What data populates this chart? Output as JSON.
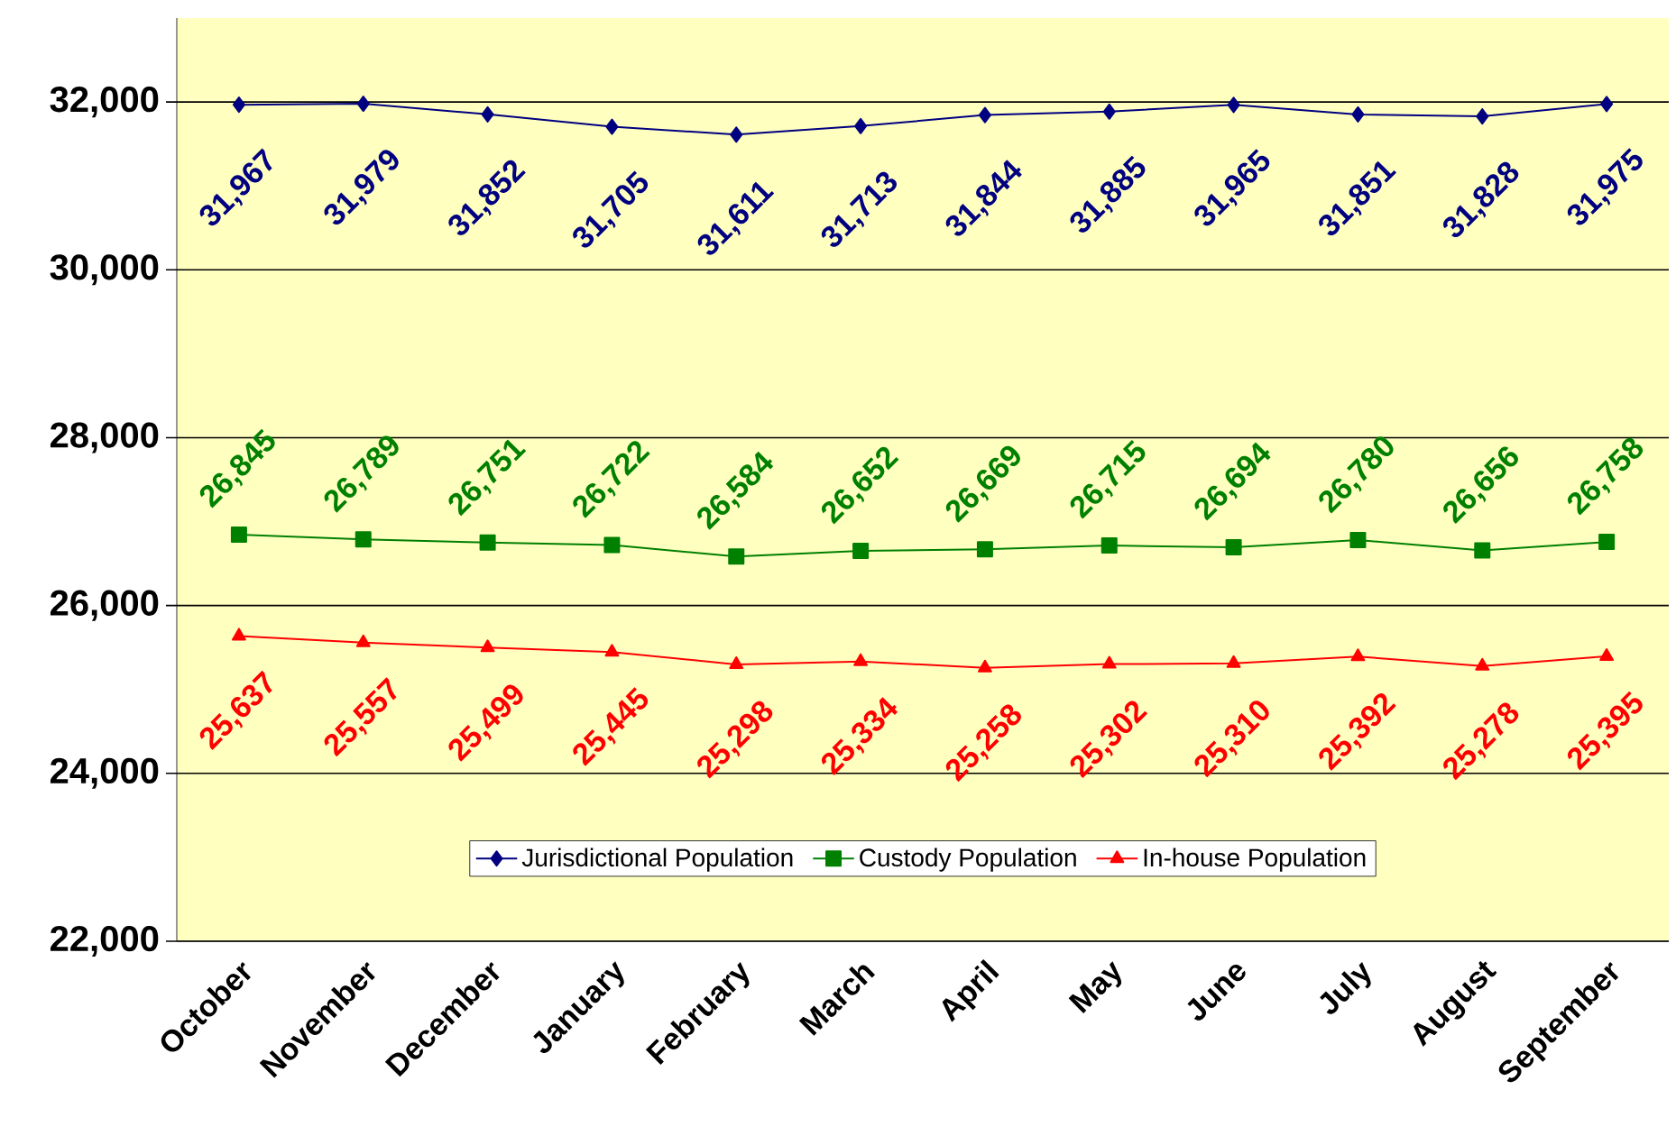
{
  "chart_data": {
    "type": "line",
    "categories": [
      "October",
      "November",
      "December",
      "January",
      "February",
      "March",
      "April",
      "May",
      "June",
      "July",
      "August",
      "September"
    ],
    "series": [
      {
        "name": "Jurisdictional Population",
        "color": "#000080",
        "marker": "diamond",
        "values": [
          31967,
          31979,
          31852,
          31705,
          31611,
          31713,
          31844,
          31885,
          31965,
          31851,
          31828,
          31975
        ],
        "value_labels": [
          "31,967",
          "31,979",
          "31,852",
          "31,705",
          "31,611",
          "31,713",
          "31,844",
          "31,885",
          "31,965",
          "31,851",
          "31,828",
          "31,975"
        ]
      },
      {
        "name": "Custody Population",
        "color": "#008000",
        "marker": "square",
        "values": [
          26845,
          26789,
          26751,
          26722,
          26584,
          26652,
          26669,
          26715,
          26694,
          26780,
          26656,
          26758
        ],
        "value_labels": [
          "26,845",
          "26,789",
          "26,751",
          "26,722",
          "26,584",
          "26,652",
          "26,669",
          "26,715",
          "26,694",
          "26,780",
          "26,656",
          "26,758"
        ]
      },
      {
        "name": "In-house Population",
        "color": "#ff0000",
        "marker": "triangle",
        "values": [
          25637,
          25557,
          25499,
          25445,
          25298,
          25334,
          25258,
          25302,
          25310,
          25392,
          25278,
          25395
        ],
        "value_labels": [
          "25,637",
          "25,557",
          "25,499",
          "25,445",
          "25,298",
          "25,334",
          "25,258",
          "25,302",
          "25,310",
          "25,392",
          "25,278",
          "25,395"
        ]
      }
    ],
    "ylim": [
      22000,
      33000
    ],
    "yticks": [
      {
        "value": 22000,
        "label": "22,000"
      },
      {
        "value": 24000,
        "label": "24,000"
      },
      {
        "value": 26000,
        "label": "26,000"
      },
      {
        "value": 28000,
        "label": "28,000"
      },
      {
        "value": 30000,
        "label": "30,000"
      },
      {
        "value": 32000,
        "label": "32,000"
      }
    ],
    "grid": "y",
    "legend": "bottom",
    "line_style": "solid"
  }
}
